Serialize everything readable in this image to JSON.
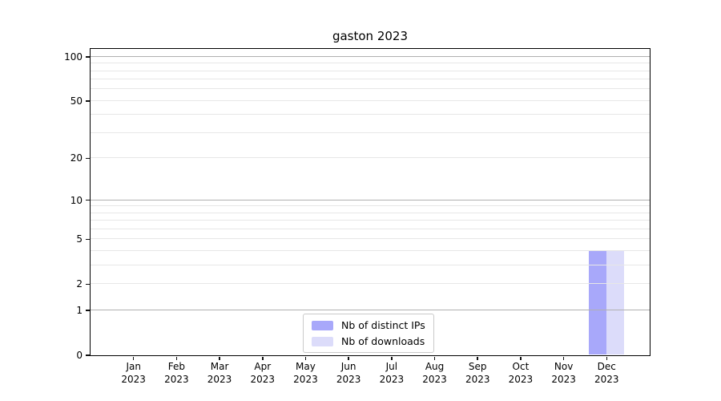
{
  "title": "gaston 2023",
  "chart_data": {
    "type": "bar",
    "title": "gaston 2023",
    "categories": [
      "Jan 2023",
      "Feb 2023",
      "Mar 2023",
      "Apr 2023",
      "May 2023",
      "Jun 2023",
      "Jul 2023",
      "Aug 2023",
      "Sep 2023",
      "Oct 2023",
      "Nov 2023",
      "Dec 2023"
    ],
    "series": [
      {
        "name": "Nb of distinct IPs",
        "color": "#a8a8fa",
        "values": [
          0,
          0,
          0,
          0,
          0,
          0,
          0,
          0,
          0,
          0,
          0,
          4
        ]
      },
      {
        "name": "Nb of downloads",
        "color": "#dcdcfa",
        "values": [
          0,
          0,
          0,
          0,
          0,
          0,
          0,
          0,
          0,
          0,
          0,
          4
        ]
      }
    ],
    "xlabel": "",
    "ylabel": "",
    "y_scale": "log1p",
    "ylim": [
      0,
      113
    ],
    "y_ticks_labeled": [
      0,
      1,
      2,
      5,
      10,
      20,
      50,
      100
    ],
    "y_minor_gridlines": [
      2,
      3,
      4,
      5,
      6,
      7,
      8,
      9,
      20,
      30,
      40,
      50,
      60,
      70,
      80,
      90
    ],
    "y_major_gridlines": [
      1,
      10,
      100
    ],
    "grid": true,
    "legend_position": "lower center"
  },
  "legend": {
    "items": [
      {
        "label": "Nb of distinct IPs",
        "color": "#a8a8fa"
      },
      {
        "label": "Nb of downloads",
        "color": "#dcdcfa"
      }
    ]
  },
  "colors": {
    "background": "#ffffff",
    "spine": "#000000",
    "minor_grid": "#e7e7e7",
    "major_grid": "#b0b0b0",
    "bar_distinct_ips": "#a8a8fa",
    "bar_downloads": "#dcdcfa",
    "legend_border": "#c9c9c9",
    "text": "#000000"
  }
}
